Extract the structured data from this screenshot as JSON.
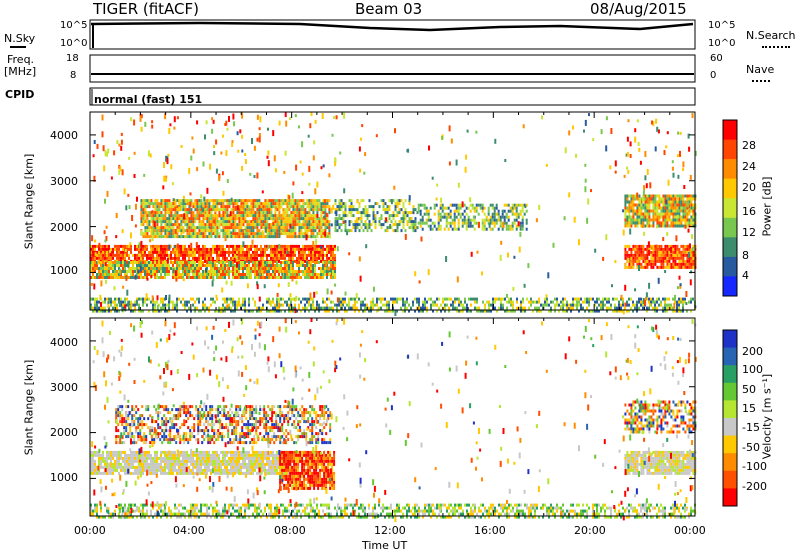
{
  "header": {
    "radar": "TIGER (fitACF)",
    "beam": "Beam 03",
    "date": "08/Aug/2015"
  },
  "params_panel": {
    "nsky_label": "N.Sky",
    "nsearch_label": "N.Search",
    "freq_label": "Freq.",
    "freq_unit": "[MHz]",
    "nave_label": "Nave",
    "cpid_label": "CPID",
    "cpid_value": "normal (fast) 151",
    "noise_ticks": [
      "10^5",
      "10^0"
    ],
    "noise_ticks_right": [
      "10^5",
      "10^0"
    ],
    "freq_ticks": [
      "18",
      "8"
    ],
    "nave_ticks": [
      "60",
      "0"
    ]
  },
  "axes": {
    "y_label": "Slant Range [km]",
    "y_ticks": [
      "4000",
      "3000",
      "2000",
      "1000"
    ],
    "x_label": "Time UT",
    "x_ticks": [
      "00:00",
      "04:00",
      "08:00",
      "12:00",
      "16:00",
      "20:00",
      "00:00"
    ]
  },
  "power_colorbar": {
    "label": "Power [dB]",
    "ticks": [
      "28",
      "24",
      "20",
      "16",
      "12",
      "8",
      "4"
    ],
    "colors": [
      "#ff0000",
      "#ff4500",
      "#ff8c00",
      "#ffc800",
      "#c8e632",
      "#78c850",
      "#3c8c6e",
      "#285aa0",
      "#1428ff"
    ]
  },
  "velocity_colorbar": {
    "label": "Velocity [m s⁻¹]",
    "ticks": [
      "200",
      "100",
      "50",
      "15",
      "-15",
      "-50",
      "-100",
      "-200"
    ],
    "colors": [
      "#1e32c8",
      "#2864b4",
      "#28a064",
      "#64c832",
      "#b4e632",
      "#c8c8c8",
      "#ffc800",
      "#ff8c00",
      "#ff5000",
      "#ff0000"
    ]
  },
  "chart_data": {
    "type": "heatmap",
    "x_range_hours": [
      0,
      24
    ],
    "y_range_km": [
      180,
      4500
    ],
    "power_regions": [
      {
        "t": [
          0.0,
          9.7
        ],
        "r": [
          1250,
          1600
        ],
        "level": "high"
      },
      {
        "t": [
          0.0,
          9.7
        ],
        "r": [
          900,
          1250
        ],
        "level": "mid"
      },
      {
        "t": [
          2.0,
          9.5
        ],
        "r": [
          1800,
          2600
        ],
        "level": "mid"
      },
      {
        "t": [
          9.7,
          13.0
        ],
        "r": [
          1900,
          2600
        ],
        "level": "low"
      },
      {
        "t": [
          13.0,
          17.3
        ],
        "r": [
          1950,
          2500
        ],
        "level": "low"
      },
      {
        "t": [
          21.2,
          24.0
        ],
        "r": [
          1100,
          1600
        ],
        "level": "high"
      },
      {
        "t": [
          21.2,
          24.0
        ],
        "r": [
          2000,
          2700
        ],
        "level": "mid"
      },
      {
        "t": [
          0.0,
          24.0
        ],
        "r": [
          180,
          450
        ],
        "level": "low"
      }
    ],
    "velocity_regions": [
      {
        "t": [
          0.0,
          8.0
        ],
        "r": [
          1100,
          1600
        ],
        "v": "near-zero"
      },
      {
        "t": [
          7.5,
          9.7
        ],
        "r": [
          800,
          1600
        ],
        "v": "negative"
      },
      {
        "t": [
          1.0,
          9.5
        ],
        "r": [
          1800,
          2600
        ],
        "v": "mixed"
      },
      {
        "t": [
          21.2,
          24.0
        ],
        "r": [
          1100,
          1600
        ],
        "v": "near-zero"
      },
      {
        "t": [
          21.2,
          24.0
        ],
        "r": [
          2000,
          2700
        ],
        "v": "mixed"
      },
      {
        "t": [
          0.0,
          24.0
        ],
        "r": [
          180,
          450
        ],
        "v": "small-positive"
      }
    ]
  }
}
